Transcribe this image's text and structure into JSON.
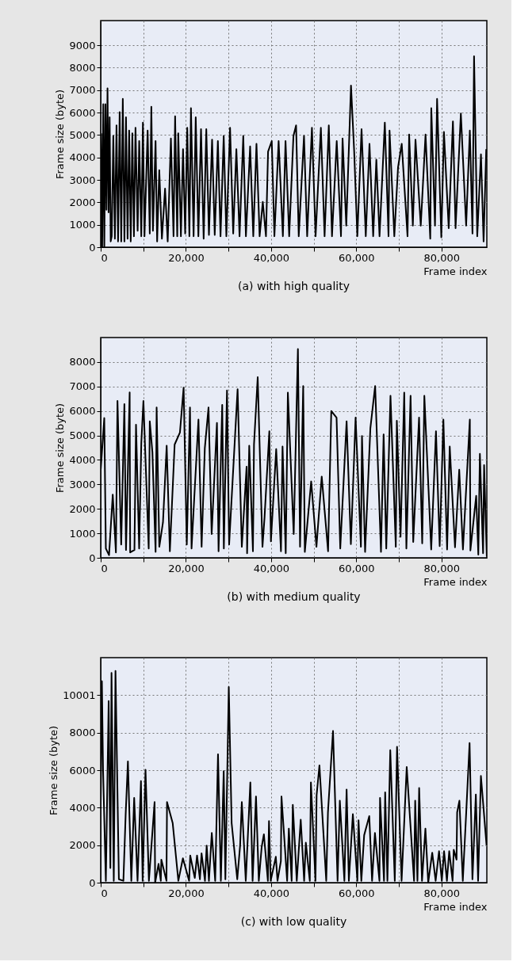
{
  "chart_data": [
    {
      "type": "line",
      "xlabel": "Frame index",
      "ylabel": "Frame size (byte)",
      "annotations": [
        "(a) with high quality"
      ],
      "xlim": [
        0,
        90650
      ],
      "ylim": [
        0,
        10100
      ],
      "xticks": [
        {
          "value": 0,
          "label": "0"
        },
        {
          "value": 10000,
          "label": null
        },
        {
          "value": 20000,
          "label": "20,000"
        },
        {
          "value": 30000,
          "label": null
        },
        {
          "value": 40000,
          "label": "40,000"
        },
        {
          "value": 50000,
          "label": null
        },
        {
          "value": 60000,
          "label": "60,000"
        },
        {
          "value": 70000,
          "label": null
        },
        {
          "value": 80000,
          "label": "80,000"
        }
      ],
      "yticks": [
        0,
        1000,
        2000,
        3000,
        4000,
        5000,
        6000,
        7000,
        8000,
        9000
      ],
      "grid": true,
      "series": [
        {
          "color": "#000000",
          "x": [
            110,
            350,
            600,
            850,
            1100,
            1350,
            1600,
            1850,
            2100,
            2350,
            2590,
            2960,
            3330,
            3710,
            4080,
            4450,
            4820,
            5190,
            5570,
            5940,
            6310,
            6680,
            7050,
            7430,
            7800,
            8170,
            8670,
            9040,
            9530,
            9910,
            10280,
            11020,
            11520,
            11890,
            12260,
            12880,
            13250,
            13750,
            14370,
            15110,
            15730,
            16480,
            17100,
            17470,
            17970,
            18210,
            18830,
            19330,
            19830,
            20320,
            20820,
            21190,
            21810,
            22310,
            22930,
            23550,
            24170,
            24790,
            25410,
            26150,
            26770,
            27510,
            28130,
            28880,
            29500,
            30370,
            31110,
            31850,
            32600,
            33470,
            34090,
            35080,
            35820,
            36570,
            37310,
            38050,
            38800,
            39290,
            40160,
            40780,
            41770,
            42770,
            43390,
            44250,
            45250,
            45870,
            46490,
            47730,
            48470,
            49090,
            49590,
            50450,
            51690,
            52560,
            53550,
            54300,
            55410,
            56410,
            56780,
            57650,
            58760,
            59510,
            60250,
            61240,
            62230,
            63100,
            63970,
            64710,
            65460,
            66700,
            67570,
            67810,
            68930,
            69800,
            70670,
            72030,
            72410,
            73280,
            73900,
            75140,
            76260,
            77370,
            77610,
            78480,
            78970,
            79960,
            80580,
            81700,
            82690,
            83310,
            84550,
            85790,
            86660,
            87280,
            87650,
            88400,
            89270,
            89890,
            90510
          ],
          "values": [
            5080,
            0,
            6370,
            0,
            6370,
            1670,
            7080,
            1550,
            5790,
            260,
            490,
            4960,
            380,
            5430,
            260,
            6020,
            260,
            6610,
            260,
            5790,
            380,
            5200,
            260,
            5080,
            490,
            5320,
            730,
            4730,
            490,
            5550,
            490,
            5200,
            610,
            6260,
            730,
            4730,
            260,
            3430,
            380,
            2610,
            260,
            4850,
            490,
            5840,
            490,
            5080,
            490,
            4370,
            610,
            5320,
            490,
            6200,
            490,
            5790,
            490,
            5260,
            380,
            5260,
            550,
            4790,
            550,
            4730,
            490,
            4960,
            490,
            5320,
            610,
            4370,
            490,
            4960,
            490,
            4490,
            490,
            4610,
            490,
            2020,
            490,
            4260,
            4730,
            490,
            4730,
            490,
            4730,
            490,
            4960,
            5430,
            490,
            4960,
            490,
            3200,
            5320,
            490,
            5320,
            490,
            5430,
            490,
            4730,
            490,
            4850,
            960,
            7200,
            4260,
            490,
            5260,
            490,
            4610,
            490,
            3900,
            490,
            5550,
            490,
            5200,
            490,
            3550,
            4610,
            490,
            5020,
            960,
            4790,
            960,
            5020,
            380,
            6200,
            960,
            6610,
            440,
            5140,
            850,
            5610,
            850,
            5960,
            960,
            5200,
            610,
            8510,
            490,
            4140,
            260,
            4370
          ]
        }
      ]
    },
    {
      "type": "line",
      "xlabel": "Frame index",
      "ylabel": "Frame size (byte)",
      "annotations": [
        "(b) with medium quality"
      ],
      "xlim": [
        0,
        90650
      ],
      "ylim": [
        0,
        9000
      ],
      "xticks": [
        {
          "value": 0,
          "label": "0"
        },
        {
          "value": 10000,
          "label": null
        },
        {
          "value": 20000,
          "label": "20,000"
        },
        {
          "value": 30000,
          "label": null
        },
        {
          "value": 40000,
          "label": "40,000"
        },
        {
          "value": 50000,
          "label": null
        },
        {
          "value": 60000,
          "label": "60,000"
        },
        {
          "value": 70000,
          "label": null
        },
        {
          "value": 80000,
          "label": "80,000"
        }
      ],
      "yticks": [
        0,
        1000,
        2000,
        3000,
        4000,
        5000,
        6000,
        7000,
        8000
      ],
      "grid": true,
      "series": [
        {
          "color": "#000000",
          "x": [
            10,
            840,
            1210,
            1960,
            2830,
            3570,
            3940,
            4810,
            5560,
            5940,
            6800,
            6920,
            7920,
            8290,
            9030,
            9530,
            10030,
            11270,
            11520,
            12140,
            12890,
            13130,
            13760,
            14620,
            15490,
            16240,
            17360,
            18600,
            19470,
            20210,
            20960,
            21330,
            22950,
            23690,
            24440,
            25310,
            26050,
            27290,
            27670,
            28530,
            28910,
            29650,
            30150,
            32140,
            33130,
            34250,
            34370,
            34870,
            35740,
            35990,
            36860,
            37980,
            38470,
            39590,
            39960,
            41200,
            42320,
            42690,
            43440,
            43940,
            45310,
            46300,
            46800,
            47540,
            47920,
            49410,
            50650,
            51890,
            53380,
            54130,
            55370,
            56240,
            57730,
            58730,
            59840,
            61090,
            61340,
            62070,
            63310,
            64430,
            65800,
            66420,
            67040,
            68030,
            69280,
            69520,
            70390,
            71260,
            71760,
            72750,
            73370,
            74740,
            75480,
            75980,
            77590,
            78710,
            79580,
            80450,
            81320,
            81940,
            83180,
            84170,
            85040,
            86660,
            86790,
            88150,
            88650,
            89020,
            89770,
            90010,
            90640
          ],
          "values": [
            3610,
            5710,
            380,
            110,
            2580,
            220,
            6410,
            540,
            6280,
            320,
            6760,
            220,
            320,
            5440,
            380,
            4680,
            6410,
            380,
            5580,
            4310,
            240,
            6140,
            450,
            1450,
            4580,
            270,
            4630,
            5120,
            6950,
            540,
            6140,
            380,
            5650,
            450,
            4470,
            6140,
            970,
            5510,
            270,
            6250,
            380,
            6840,
            540,
            6890,
            450,
            3720,
            190,
            4580,
            270,
            4630,
            7380,
            450,
            1670,
            5170,
            670,
            4440,
            270,
            4550,
            190,
            6750,
            970,
            8530,
            450,
            7020,
            240,
            3120,
            450,
            3320,
            270,
            6000,
            5730,
            380,
            5580,
            560,
            5730,
            450,
            4980,
            240,
            5300,
            7020,
            240,
            5040,
            380,
            6620,
            450,
            5600,
            860,
            6750,
            380,
            6620,
            650,
            5730,
            590,
            6620,
            340,
            5170,
            480,
            5650,
            340,
            4550,
            430,
            3600,
            340,
            5650,
            300,
            2530,
            130,
            4250,
            190,
            3790,
            50
          ]
        }
      ]
    },
    {
      "type": "line",
      "xlabel": "Frame index",
      "ylabel": "Frame size (byte)",
      "annotations": [
        "(c) with low quality"
      ],
      "xlim": [
        0,
        90650
      ],
      "ylim": [
        0,
        12000
      ],
      "xticks": [
        {
          "value": 0,
          "label": "0"
        },
        {
          "value": 10000,
          "label": null
        },
        {
          "value": 20000,
          "label": "20,000"
        },
        {
          "value": 30000,
          "label": null
        },
        {
          "value": 40000,
          "label": "40,000"
        },
        {
          "value": 50000,
          "label": null
        },
        {
          "value": 60000,
          "label": "60,000"
        },
        {
          "value": 70000,
          "label": null
        },
        {
          "value": 80000,
          "label": "80,000"
        }
      ],
      "yticks": [
        0,
        2000,
        4000,
        6000,
        8000,
        10001
      ],
      "grid": true,
      "series": [
        {
          "color": "#000000",
          "x": [
            10,
            280,
            550,
            1210,
            1870,
            2270,
            2540,
            3070,
            3470,
            4270,
            5330,
            5860,
            6390,
            7190,
            7860,
            8650,
            9450,
            9850,
            10520,
            11320,
            12650,
            12780,
            13580,
            14110,
            14240,
            15440,
            15570,
            16900,
            18230,
            19300,
            20760,
            21020,
            22090,
            22620,
            23290,
            23680,
            24480,
            24880,
            25410,
            26080,
            26880,
            27540,
            28210,
            28880,
            29270,
            30070,
            30740,
            32060,
            32730,
            33130,
            34060,
            35130,
            35660,
            36460,
            37120,
            37790,
            38310,
            39250,
            39510,
            39910,
            41110,
            41510,
            42300,
            42440,
            43770,
            44170,
            44830,
            45100,
            46030,
            46960,
            47760,
            48160,
            49090,
            49350,
            50420,
            50690,
            51350,
            52950,
            53350,
            54540,
            55610,
            56140,
            57210,
            57730,
            58260,
            59200,
            60260,
            60530,
            61190,
            61850,
            63050,
            63710,
            64380,
            65440,
            65580,
            66510,
            66780,
            67310,
            67980,
            69040,
            69570,
            70640,
            71840,
            73560,
            73830,
            74360,
            74760,
            75430,
            76230,
            76890,
            77830,
            78630,
            79430,
            80080,
            80610,
            81280,
            81820,
            82610,
            82880,
            83540,
            83680,
            84210,
            85010,
            85810,
            86600,
            87270,
            88070,
            88600,
            89260,
            90590
          ],
          "values": [
            4370,
            10740,
            6020,
            100,
            9690,
            780,
            11190,
            100,
            11290,
            180,
            100,
            3630,
            6470,
            100,
            4520,
            100,
            5420,
            100,
            6020,
            100,
            4300,
            0,
            1000,
            100,
            1230,
            100,
            4300,
            3180,
            100,
            1300,
            100,
            1450,
            250,
            1450,
            180,
            1560,
            100,
            1980,
            100,
            2650,
            100,
            6850,
            100,
            5950,
            180,
            10440,
            3180,
            180,
            1980,
            4300,
            100,
            5350,
            100,
            4600,
            100,
            1900,
            2580,
            100,
            3280,
            100,
            1380,
            100,
            1150,
            4600,
            100,
            2880,
            100,
            4150,
            100,
            3360,
            100,
            2130,
            100,
            5350,
            100,
            4670,
            6250,
            100,
            3750,
            8090,
            100,
            4370,
            100,
            4970,
            100,
            3650,
            100,
            3330,
            100,
            2530,
            3550,
            100,
            2650,
            100,
            4520,
            100,
            4820,
            100,
            7070,
            100,
            7250,
            100,
            6170,
            100,
            4370,
            100,
            5050,
            100,
            2880,
            0,
            1600,
            100,
            1680,
            100,
            1680,
            100,
            1680,
            100,
            1750,
            1230,
            3750,
            4370,
            100,
            3750,
            7450,
            180,
            4700,
            100,
            5690,
            1980
          ]
        }
      ]
    }
  ]
}
